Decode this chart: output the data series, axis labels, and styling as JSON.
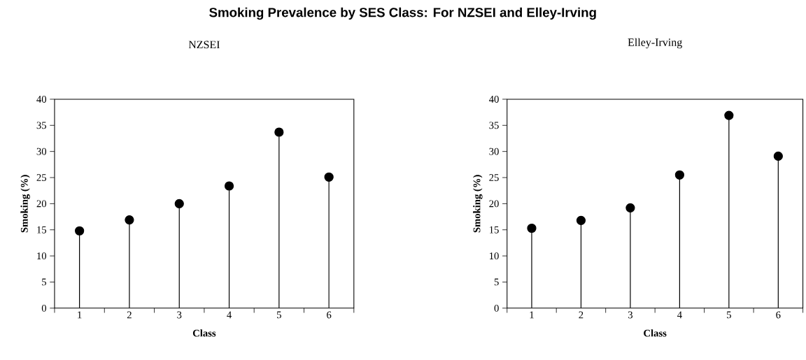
{
  "chart_data": [
    {
      "type": "lollipop",
      "title": "Smoking Prevalence by SES Class: For NZSEI and Elley-Irving",
      "subtitle": "NZSEI",
      "xlabel": "Class",
      "ylabel": "Smoking (%)",
      "categories": [
        "1",
        "2",
        "3",
        "4",
        "5",
        "6"
      ],
      "values": [
        14.8,
        16.9,
        20.0,
        23.4,
        33.7,
        25.1
      ],
      "color": "#000000",
      "marker": "circle",
      "ylim": [
        0,
        40
      ],
      "yticks": [
        0,
        5,
        10,
        15,
        20,
        25,
        30,
        35,
        40
      ]
    },
    {
      "type": "lollipop",
      "subtitle": "Elley-Irving",
      "xlabel": "Class",
      "ylabel": "Smoking (%)",
      "categories": [
        "1",
        "2",
        "3",
        "4",
        "5",
        "6"
      ],
      "values": [
        15.3,
        16.8,
        19.2,
        25.5,
        36.9,
        29.1
      ],
      "color": "#000000",
      "marker": "circle",
      "ylim": [
        0,
        40
      ],
      "yticks": [
        0,
        5,
        10,
        15,
        20,
        25,
        30,
        35,
        40
      ]
    }
  ]
}
